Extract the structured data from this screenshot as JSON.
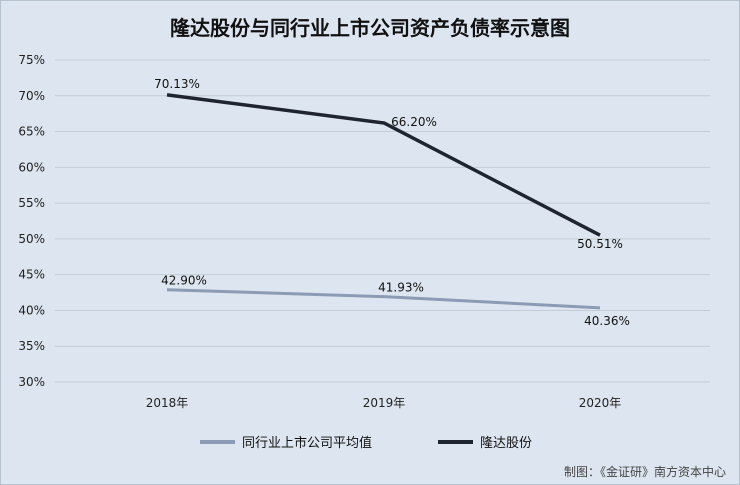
{
  "chart_data": {
    "type": "line",
    "title": "隆达股份与同行业上市公司资产负债率示意图",
    "categories": [
      "2018年",
      "2019年",
      "2020年"
    ],
    "ylim": [
      30,
      75
    ],
    "yticks": [
      "30%",
      "35%",
      "40%",
      "45%",
      "50%",
      "55%",
      "60%",
      "65%",
      "70%",
      "75%"
    ],
    "grid": true,
    "legend_position": "bottom",
    "series": [
      {
        "name": "同行业上市公司平均值",
        "values": [
          42.9,
          41.93,
          40.36
        ],
        "labels": [
          "42.90%",
          "41.93%",
          "40.36%"
        ],
        "color": "#8c9bb5"
      },
      {
        "name": "隆达股份",
        "values": [
          70.13,
          66.2,
          50.51
        ],
        "labels": [
          "70.13%",
          "66.20%",
          "50.51%"
        ],
        "color": "#1f2530"
      }
    ]
  },
  "source": "制图：《金证研》南方资本中心"
}
